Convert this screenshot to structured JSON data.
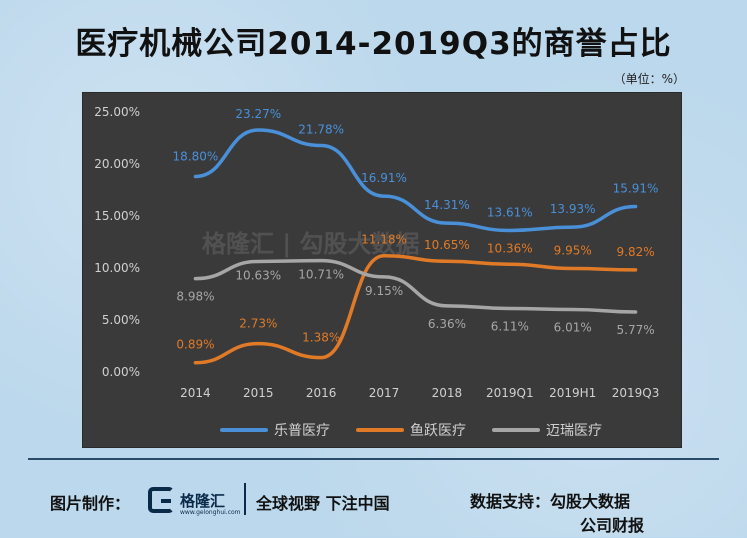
{
  "title": "医疗机械公司2014-2019Q3的商誉占比",
  "unit": "（单位：%）",
  "watermark": "格隆汇 | 勾股大数据",
  "footer": {
    "made_by_label": "图片制作：",
    "logo_text": "格隆汇",
    "logo_sub": "www.gelonghui.com",
    "slogan": "全球视野 下注中国",
    "source_label": "数据支持：",
    "source_line1": "勾股大数据",
    "source_line2": "公司财报"
  },
  "colors": {
    "lepu": "#4a90d9",
    "yuyue": "#e07a27",
    "mairui": "#a6a6a6",
    "grid": "#555555",
    "text": "#d0d0d0"
  },
  "chart_data": {
    "type": "line",
    "categories": [
      "2014",
      "2015",
      "2016",
      "2017",
      "2018",
      "2019Q1",
      "2019H1",
      "2019Q3"
    ],
    "ylim": [
      0,
      25
    ],
    "yticks": [
      "0.00%",
      "5.00%",
      "10.00%",
      "15.00%",
      "20.00%",
      "25.00%"
    ],
    "legend_position": "bottom",
    "grid": false,
    "series": [
      {
        "name": "乐普医疗",
        "color_key": "lepu",
        "values": [
          18.8,
          23.27,
          21.78,
          16.91,
          14.31,
          13.61,
          13.93,
          15.91
        ],
        "labels": [
          "18.80%",
          "23.27%",
          "21.78%",
          "16.91%",
          "14.31%",
          "13.61%",
          "13.93%",
          "15.91%"
        ]
      },
      {
        "name": "鱼跃医疗",
        "color_key": "yuyue",
        "values": [
          0.89,
          2.73,
          1.38,
          11.18,
          10.65,
          10.36,
          9.95,
          9.82
        ],
        "labels": [
          "0.89%",
          "2.73%",
          "1.38%",
          "11.18%",
          "10.65%",
          "10.36%",
          "9.95%",
          "9.82%"
        ]
      },
      {
        "name": "迈瑞医疗",
        "color_key": "mairui",
        "values": [
          8.98,
          10.63,
          10.71,
          9.15,
          6.36,
          6.11,
          6.01,
          5.77
        ],
        "labels": [
          "8.98%",
          "10.63%",
          "10.71%",
          "9.15%",
          "6.36%",
          "6.11%",
          "6.01%",
          "5.77%"
        ]
      }
    ]
  }
}
